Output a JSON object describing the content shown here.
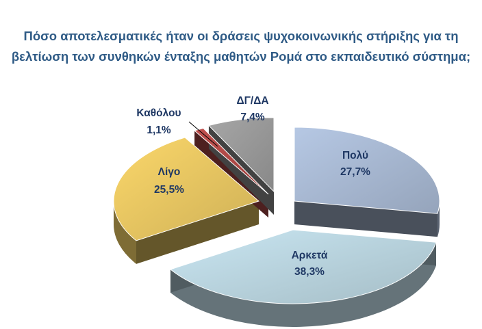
{
  "chart_data": {
    "type": "pie",
    "title_lines": [
      "Πόσο αποτελεσματικές ήταν οι δράσεις ψυχοκοινωνικής στήριξης για τη",
      "βελτίωση των συνθηκών ένταξης μαθητών Ρομά στο εκπαιδευτικό σύστημα;"
    ],
    "slices": [
      {
        "label": "Πολύ",
        "value": 27.7,
        "value_label": "27,7%",
        "color": "#b6c8e4",
        "label_color": "#1f3864"
      },
      {
        "label": "Αρκετά",
        "value": 38.3,
        "value_label": "38,3%",
        "color": "#c9e6f2",
        "label_color": "#1f3864"
      },
      {
        "label": "Λίγο",
        "value": 25.5,
        "value_label": "25,5%",
        "color": "#fbd76a",
        "label_color": "#1f3864"
      },
      {
        "label": "Καθόλου",
        "value": 1.1,
        "value_label": "1,1%",
        "color": "#c0504d",
        "label_color": "#1f3864"
      },
      {
        "label": "ΔΓ/ΔΑ",
        "value": 7.4,
        "value_label": "7,4%",
        "color": "#a6a6a6",
        "label_color": "#1f3864"
      }
    ],
    "style": "3d-exploded"
  }
}
